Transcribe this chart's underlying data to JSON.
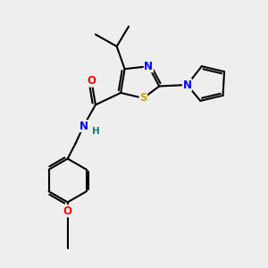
{
  "bg_color": "#eeeeee",
  "bond_color": "#000000",
  "bond_width": 1.5,
  "atom_colors": {
    "N": "#0000ff",
    "O": "#ff0000",
    "S": "#ccaa00",
    "H": "#008080",
    "C": "#000000"
  },
  "font_size": 8.5,
  "xlim": [
    0,
    10
  ],
  "ylim": [
    0,
    10
  ]
}
